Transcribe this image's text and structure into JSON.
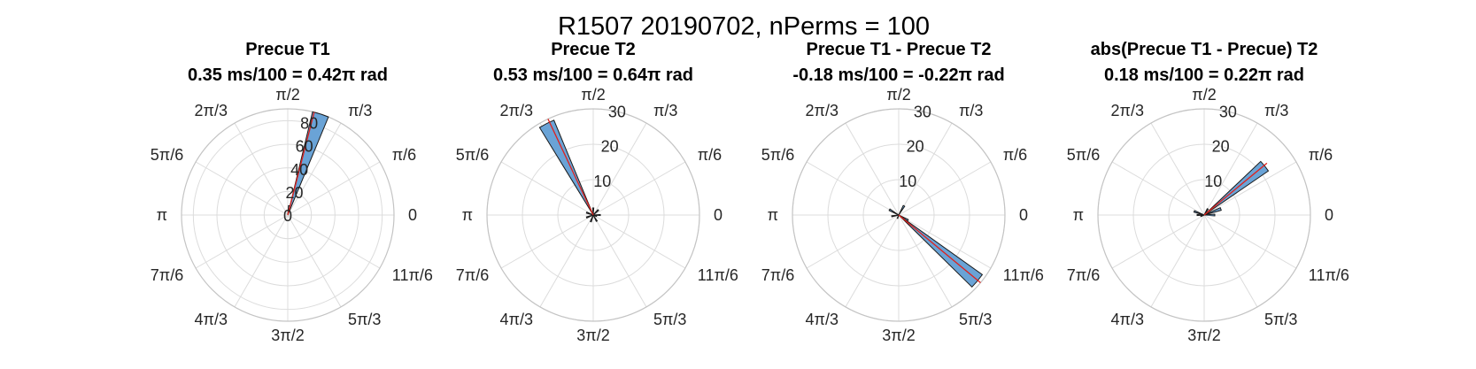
{
  "chart_data": {
    "title": "R1507 20190702, nPerms = 100",
    "theta_tick_labels": [
      "0",
      "π/6",
      "π/3",
      "π/2",
      "2π/3",
      "5π/6",
      "π",
      "7π/6",
      "4π/3",
      "3π/2",
      "5π/3",
      "11π/6"
    ],
    "colors": {
      "bar_fill": "#6aa3d6",
      "bar_edge": "#1a1a1a",
      "mean_line": "#e0201b",
      "grid": "#dcdcdc"
    },
    "panels": [
      {
        "type": "polar-histogram",
        "title_line1": "Precue T1",
        "title_line2": "0.35 ms/100 = 0.42π rad",
        "rlim": [
          0,
          90
        ],
        "r_ticks": [
          "0",
          "20",
          "40",
          "60",
          "80"
        ],
        "r_tick_values": [
          0,
          20,
          40,
          60,
          80
        ],
        "bin_width_deg": 9,
        "bins": [
          {
            "angle_deg": 72,
            "count": 90
          },
          {
            "angle_deg": 81,
            "count": 8
          }
        ],
        "mean_angle_deg": 75.6,
        "mean_length": 90
      },
      {
        "type": "polar-histogram",
        "title_line1": "Precue T2",
        "title_line2": "0.53 ms/100 = 0.64π rad",
        "rlim": [
          0,
          30
        ],
        "r_ticks": [
          "10",
          "20",
          "30"
        ],
        "r_tick_values": [
          10,
          20,
          30
        ],
        "bin_width_deg": 9,
        "bins": [
          {
            "angle_deg": 117,
            "count": 29
          },
          {
            "angle_deg": 0,
            "count": 2
          },
          {
            "angle_deg": 45,
            "count": 2
          },
          {
            "angle_deg": 90,
            "count": 2
          },
          {
            "angle_deg": 160,
            "count": 2
          },
          {
            "angle_deg": 200,
            "count": 2
          },
          {
            "angle_deg": 250,
            "count": 2
          },
          {
            "angle_deg": 300,
            "count": 2
          },
          {
            "angle_deg": 340,
            "count": 1
          }
        ],
        "mean_angle_deg": 115.2,
        "mean_length": 30
      },
      {
        "type": "polar-histogram",
        "title_line1": "Precue T1 - Precue T2",
        "title_line2": "-0.18 ms/100 = -0.22π rad",
        "rlim": [
          0,
          30
        ],
        "r_ticks": [
          "10",
          "20",
          "30"
        ],
        "r_tick_values": [
          10,
          20,
          30
        ],
        "bin_width_deg": 9,
        "bins": [
          {
            "angle_deg": 320,
            "count": 29
          },
          {
            "angle_deg": 330,
            "count": 3
          },
          {
            "angle_deg": 60,
            "count": 3
          },
          {
            "angle_deg": 150,
            "count": 3
          },
          {
            "angle_deg": 190,
            "count": 2
          },
          {
            "angle_deg": 250,
            "count": 1
          }
        ],
        "mean_angle_deg": 320.4,
        "mean_length": 30
      },
      {
        "type": "polar-histogram",
        "title_line1": "abs(Precue T1 - Precue) T2",
        "title_line2": "0.18 ms/100 = 0.22π rad",
        "rlim": [
          0,
          30
        ],
        "r_ticks": [
          "10",
          "20",
          "30"
        ],
        "r_tick_values": [
          10,
          20,
          30
        ],
        "bin_width_deg": 9,
        "bins": [
          {
            "angle_deg": 39,
            "count": 22
          },
          {
            "angle_deg": 20,
            "count": 5
          },
          {
            "angle_deg": 0,
            "count": 3
          },
          {
            "angle_deg": 60,
            "count": 2
          },
          {
            "angle_deg": 160,
            "count": 3
          },
          {
            "angle_deg": 180,
            "count": 2
          },
          {
            "angle_deg": 200,
            "count": 1
          }
        ],
        "mean_angle_deg": 39.6,
        "mean_length": 23
      }
    ]
  }
}
